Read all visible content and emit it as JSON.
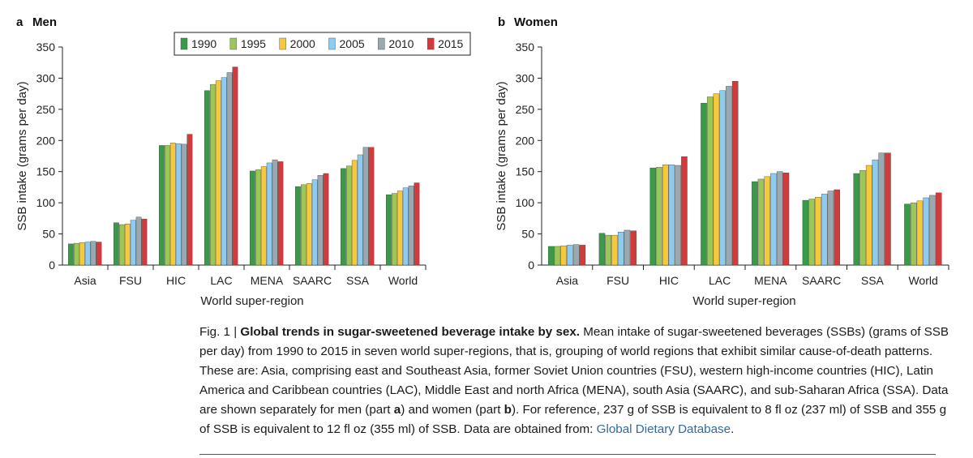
{
  "colors": {
    "1990": "#3a9a4a",
    "1995": "#9cc65a",
    "2000": "#f5c93a",
    "2005": "#8ecbee",
    "2010": "#9aa8b0",
    "2015": "#d23b3b"
  },
  "chart_data": [
    {
      "type": "bar",
      "panel_letter": "a",
      "title": "Men",
      "xlabel": "World super-region",
      "ylabel": "SSB intake (grams per day)",
      "ylim": [
        0,
        350
      ],
      "yticks": [
        "0",
        "50",
        "100",
        "150",
        "200",
        "250",
        "300",
        "350"
      ],
      "legend_position": "top-right",
      "categories": [
        "Asia",
        "FSU",
        "HIC",
        "LAC",
        "MENA",
        "SAARC",
        "SSA",
        "World"
      ],
      "series": [
        {
          "name": "1990",
          "values": [
            34,
            68,
            192,
            280,
            151,
            126,
            155,
            113
          ]
        },
        {
          "name": "1995",
          "values": [
            35,
            65,
            192,
            290,
            153,
            129,
            159,
            115
          ]
        },
        {
          "name": "2000",
          "values": [
            36,
            66,
            196,
            296,
            158,
            131,
            168,
            119
          ]
        },
        {
          "name": "2005",
          "values": [
            37,
            72,
            195,
            301,
            164,
            137,
            177,
            124
          ]
        },
        {
          "name": "2010",
          "values": [
            38,
            77,
            194,
            309,
            169,
            144,
            189,
            127
          ]
        },
        {
          "name": "2015",
          "values": [
            37,
            74,
            210,
            318,
            166,
            147,
            189,
            132
          ]
        }
      ]
    },
    {
      "type": "bar",
      "panel_letter": "b",
      "title": "Women",
      "xlabel": "World super-region",
      "ylabel": "SSB intake (grams per day)",
      "ylim": [
        0,
        350
      ],
      "yticks": [
        "0",
        "50",
        "100",
        "150",
        "200",
        "250",
        "300",
        "350"
      ],
      "categories": [
        "Asia",
        "FSU",
        "HIC",
        "LAC",
        "MENA",
        "SAARC",
        "SSA",
        "World"
      ],
      "series": [
        {
          "name": "1990",
          "values": [
            30,
            51,
            156,
            260,
            134,
            104,
            147,
            98
          ]
        },
        {
          "name": "1995",
          "values": [
            30,
            48,
            157,
            270,
            138,
            106,
            152,
            100
          ]
        },
        {
          "name": "2000",
          "values": [
            31,
            48,
            161,
            275,
            142,
            109,
            160,
            103
          ]
        },
        {
          "name": "2005",
          "values": [
            32,
            53,
            161,
            280,
            147,
            114,
            169,
            108
          ]
        },
        {
          "name": "2010",
          "values": [
            33,
            56,
            160,
            287,
            150,
            119,
            180,
            112
          ]
        },
        {
          "name": "2015",
          "values": [
            32,
            55,
            174,
            295,
            148,
            121,
            180,
            116
          ]
        }
      ]
    }
  ],
  "caption": {
    "label": "Fig. 1 | ",
    "title": "Global trends in sugar-sweetened beverage intake by sex.",
    "body_1": " Mean intake of sugar-sweetened beverages (SSBs) (grams of SSB per day) from 1990 to 2015 in seven world super-regions, that is, grouping of world regions that exhibit similar cause-of-death patterns. These are: Asia, comprising east and Southeast Asia, former Soviet Union countries (FSU), western high-income countries (HIC), Latin America and Caribbean countries (LAC), Middle East and north Africa (MENA), south Asia (SAARC), and sub-Saharan Africa (SSA). Data are shown separately for men (part ",
    "part_a": "a",
    "body_2": ") and women (part ",
    "part_b": "b",
    "body_3": "). For reference, 237 g of SSB is equivalent to 8 fl oz (237 ml) of SSB and 355 g of SSB is equivalent to 12 fl oz (355 ml) of SSB. Data are obtained from: ",
    "link_text": "Global Dietary Database",
    "end": "."
  }
}
